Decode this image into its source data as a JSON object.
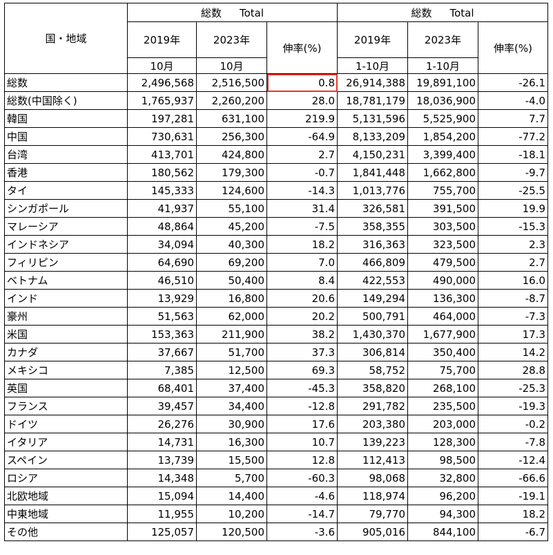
{
  "header": {
    "group_label_jp": "総数",
    "group_label_en": "Total",
    "region_col": "国・地域",
    "col_2019": "2019年",
    "col_2023": "2023年",
    "growth": "伸率(%)",
    "month": "10月",
    "ytd": "1-10月"
  },
  "rows": [
    {
      "name": "総数",
      "m19": "2,496,568",
      "m23": "2,516,500",
      "mg": "0.8",
      "y19": "26,914,388",
      "y23": "19,891,100",
      "yg": "-26.1"
    },
    {
      "name": "総数(中国除く)",
      "m19": "1,765,937",
      "m23": "2,260,200",
      "mg": "28.0",
      "y19": "18,781,179",
      "y23": "18,036,900",
      "yg": "-4.0"
    },
    {
      "name": "韓国",
      "m19": "197,281",
      "m23": "631,100",
      "mg": "219.9",
      "y19": "5,131,596",
      "y23": "5,525,900",
      "yg": "7.7"
    },
    {
      "name": "中国",
      "m19": "730,631",
      "m23": "256,300",
      "mg": "-64.9",
      "y19": "8,133,209",
      "y23": "1,854,200",
      "yg": "-77.2"
    },
    {
      "name": "台湾",
      "m19": "413,701",
      "m23": "424,800",
      "mg": "2.7",
      "y19": "4,150,231",
      "y23": "3,399,400",
      "yg": "-18.1"
    },
    {
      "name": "香港",
      "m19": "180,562",
      "m23": "179,300",
      "mg": "-0.7",
      "y19": "1,841,448",
      "y23": "1,662,800",
      "yg": "-9.7"
    },
    {
      "name": "タイ",
      "m19": "145,333",
      "m23": "124,600",
      "mg": "-14.3",
      "y19": "1,013,776",
      "y23": "755,700",
      "yg": "-25.5"
    },
    {
      "name": "シンガポール",
      "m19": "41,937",
      "m23": "55,100",
      "mg": "31.4",
      "y19": "326,581",
      "y23": "391,500",
      "yg": "19.9"
    },
    {
      "name": "マレーシア",
      "m19": "48,864",
      "m23": "45,200",
      "mg": "-7.5",
      "y19": "358,355",
      "y23": "303,500",
      "yg": "-15.3"
    },
    {
      "name": "インドネシア",
      "m19": "34,094",
      "m23": "40,300",
      "mg": "18.2",
      "y19": "316,363",
      "y23": "323,500",
      "yg": "2.3"
    },
    {
      "name": "フィリピン",
      "m19": "64,690",
      "m23": "69,200",
      "mg": "7.0",
      "y19": "466,809",
      "y23": "479,500",
      "yg": "2.7"
    },
    {
      "name": "ベトナム",
      "m19": "46,510",
      "m23": "50,400",
      "mg": "8.4",
      "y19": "422,553",
      "y23": "490,000",
      "yg": "16.0"
    },
    {
      "name": "インド",
      "m19": "13,929",
      "m23": "16,800",
      "mg": "20.6",
      "y19": "149,294",
      "y23": "136,300",
      "yg": "-8.7"
    },
    {
      "name": "豪州",
      "m19": "51,563",
      "m23": "62,000",
      "mg": "20.2",
      "y19": "500,791",
      "y23": "464,000",
      "yg": "-7.3"
    },
    {
      "name": "米国",
      "m19": "153,363",
      "m23": "211,900",
      "mg": "38.2",
      "y19": "1,430,370",
      "y23": "1,677,900",
      "yg": "17.3"
    },
    {
      "name": "カナダ",
      "m19": "37,667",
      "m23": "51,700",
      "mg": "37.3",
      "y19": "306,814",
      "y23": "350,400",
      "yg": "14.2"
    },
    {
      "name": "メキシコ",
      "m19": "7,385",
      "m23": "12,500",
      "mg": "69.3",
      "y19": "58,752",
      "y23": "75,700",
      "yg": "28.8"
    },
    {
      "name": "英国",
      "m19": "68,401",
      "m23": "37,400",
      "mg": "-45.3",
      "y19": "358,820",
      "y23": "268,100",
      "yg": "-25.3"
    },
    {
      "name": "フランス",
      "m19": "39,457",
      "m23": "34,400",
      "mg": "-12.8",
      "y19": "291,782",
      "y23": "235,500",
      "yg": "-19.3"
    },
    {
      "name": "ドイツ",
      "m19": "26,276",
      "m23": "30,900",
      "mg": "17.6",
      "y19": "203,380",
      "y23": "203,000",
      "yg": "-0.2"
    },
    {
      "name": "イタリア",
      "m19": "14,731",
      "m23": "16,300",
      "mg": "10.7",
      "y19": "139,223",
      "y23": "128,300",
      "yg": "-7.8"
    },
    {
      "name": "スペイン",
      "m19": "13,739",
      "m23": "15,500",
      "mg": "12.8",
      "y19": "112,413",
      "y23": "98,500",
      "yg": "-12.4"
    },
    {
      "name": "ロシア",
      "m19": "14,348",
      "m23": "5,700",
      "mg": "-60.3",
      "y19": "98,068",
      "y23": "32,800",
      "yg": "-66.6"
    },
    {
      "name": "北欧地域",
      "m19": "15,094",
      "m23": "14,400",
      "mg": "-4.6",
      "y19": "118,974",
      "y23": "96,200",
      "yg": "-19.1"
    },
    {
      "name": "中東地域",
      "m19": "11,955",
      "m23": "10,200",
      "mg": "-14.7",
      "y19": "79,770",
      "y23": "94,300",
      "yg": "18.2"
    },
    {
      "name": "その他",
      "m19": "125,057",
      "m23": "120,500",
      "mg": "-3.6",
      "y19": "905,016",
      "y23": "844,100",
      "yg": "-6.7"
    }
  ],
  "highlight_color": "#e8352b"
}
